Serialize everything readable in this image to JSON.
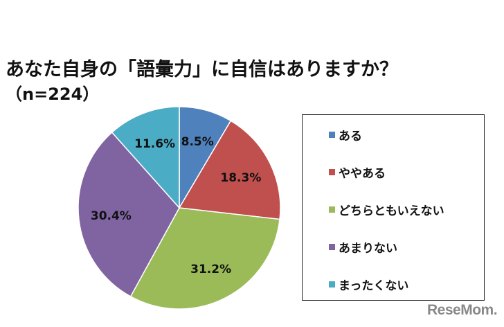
{
  "chart_data": {
    "type": "pie",
    "title": "あなた自身の「語彙力」に自信はありますか？",
    "subtitle": "（n=224）",
    "categories": [
      "ある",
      "ややある",
      "どちらともいえない",
      "あまりない",
      "まったくない"
    ],
    "values": [
      8.5,
      18.3,
      31.2,
      30.4,
      11.6
    ],
    "labels": [
      "8.5%",
      "18.3%",
      "31.2%",
      "30.4%",
      "11.6%"
    ],
    "colors": [
      "#4F81BD",
      "#C0504D",
      "#9BBB59",
      "#8064A2",
      "#4BACC6"
    ],
    "start": "12 o'clock, clockwise",
    "legend": "right"
  },
  "watermark": "ReseMom"
}
